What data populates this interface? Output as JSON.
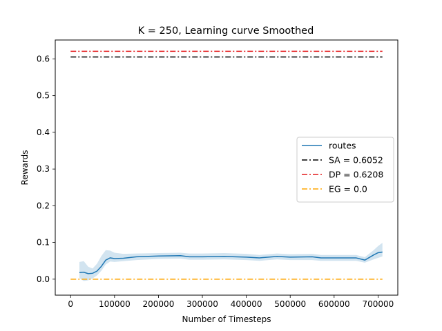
{
  "chart_data": {
    "type": "line",
    "title": "K = 250, Learning curve Smoothed",
    "xlabel": "Number of Timesteps",
    "ylabel": "Rewards",
    "xlim": [
      -35000,
      745000
    ],
    "ylim": [
      -0.0435,
      0.6515
    ],
    "xticks": [
      0,
      100000,
      200000,
      300000,
      400000,
      500000,
      600000,
      700000
    ],
    "xtick_labels": [
      "0",
      "100000",
      "200000",
      "300000",
      "400000",
      "500000",
      "600000",
      "700000"
    ],
    "yticks": [
      0.0,
      0.1,
      0.2,
      0.3,
      0.4,
      0.5,
      0.6
    ],
    "ytick_labels": [
      "0.0",
      "0.1",
      "0.2",
      "0.3",
      "0.4",
      "0.5",
      "0.6"
    ],
    "grid": false,
    "legend_position": "center-right",
    "series": [
      {
        "name": "routes",
        "style": "solid",
        "color": "#1f77b4",
        "band_color": "#1f77b4",
        "x": [
          20000,
          30000,
          40000,
          50000,
          60000,
          70000,
          80000,
          90000,
          100000,
          120000,
          150000,
          200000,
          250000,
          270000,
          300000,
          350000,
          400000,
          430000,
          470000,
          500000,
          550000,
          570000,
          600000,
          650000,
          670000,
          690000,
          700000,
          710000
        ],
        "y": [
          0.018,
          0.019,
          0.015,
          0.016,
          0.022,
          0.035,
          0.052,
          0.058,
          0.056,
          0.057,
          0.061,
          0.063,
          0.064,
          0.061,
          0.061,
          0.062,
          0.06,
          0.058,
          0.062,
          0.06,
          0.061,
          0.058,
          0.058,
          0.058,
          0.052,
          0.066,
          0.072,
          0.074
        ],
        "lower": [
          0.003,
          -0.005,
          -0.003,
          0.002,
          0.01,
          0.023,
          0.04,
          0.048,
          0.047,
          0.049,
          0.052,
          0.055,
          0.056,
          0.053,
          0.053,
          0.054,
          0.052,
          0.05,
          0.054,
          0.052,
          0.052,
          0.05,
          0.05,
          0.05,
          0.045,
          0.054,
          0.058,
          0.062
        ],
        "upper": [
          0.047,
          0.049,
          0.034,
          0.029,
          0.042,
          0.063,
          0.079,
          0.078,
          0.072,
          0.069,
          0.07,
          0.071,
          0.072,
          0.07,
          0.07,
          0.071,
          0.069,
          0.066,
          0.07,
          0.068,
          0.069,
          0.066,
          0.066,
          0.066,
          0.06,
          0.079,
          0.09,
          0.099
        ]
      },
      {
        "name": "SA = 0.6052",
        "style": "dashdot",
        "color": "#000000",
        "x": [
          0,
          710000
        ],
        "y": [
          0.6052,
          0.6052
        ]
      },
      {
        "name": "DP = 0.6208",
        "style": "dashdot",
        "color": "#e41a1c",
        "x": [
          0,
          710000
        ],
        "y": [
          0.6208,
          0.6208
        ]
      },
      {
        "name": "EG = 0.0",
        "style": "dashdot",
        "color": "#ffa500",
        "x": [
          0,
          710000
        ],
        "y": [
          0.0,
          0.0
        ]
      }
    ]
  }
}
